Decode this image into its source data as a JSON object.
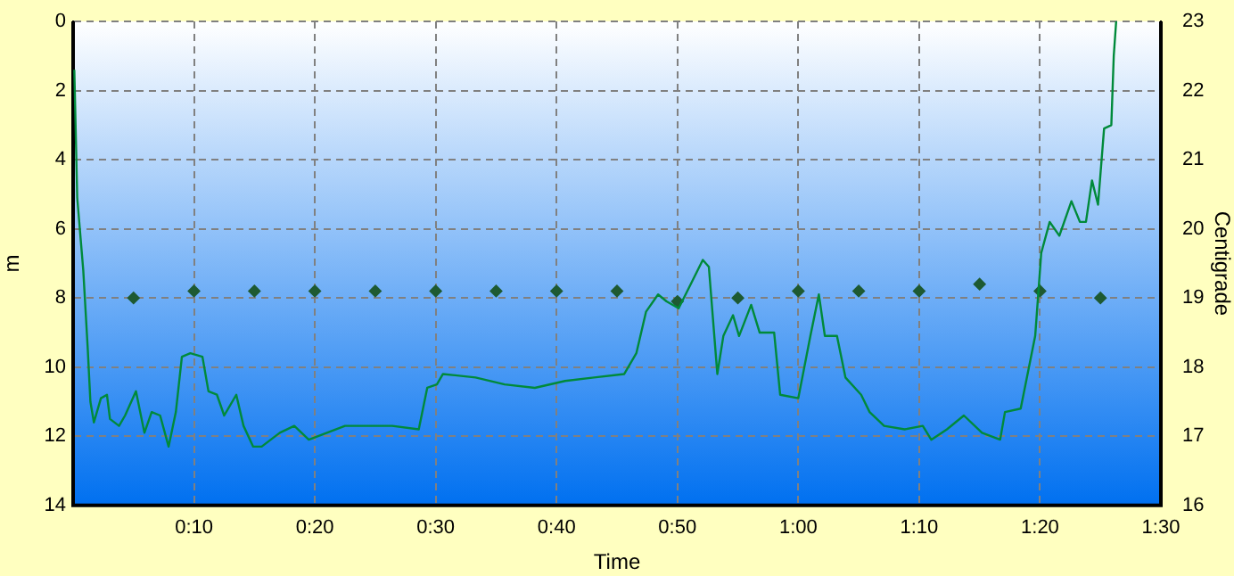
{
  "chart_data": {
    "type": "line",
    "xlabel": "Time",
    "ylabel": "m",
    "y2label": "Centigrade",
    "xlim": [
      0,
      90
    ],
    "xticks": [
      {
        "value": 0,
        "label": null
      },
      {
        "value": 10,
        "label": "0:10"
      },
      {
        "value": 20,
        "label": "0:20"
      },
      {
        "value": 30,
        "label": "0:30"
      },
      {
        "value": 40,
        "label": "0:40"
      },
      {
        "value": 50,
        "label": "0:50"
      },
      {
        "value": 60,
        "label": "1:00"
      },
      {
        "value": 70,
        "label": "1:10"
      },
      {
        "value": 80,
        "label": "1:20"
      },
      {
        "value": 90,
        "label": "1:30"
      }
    ],
    "ylim": [
      14,
      0
    ],
    "yticks": [
      0,
      2,
      4,
      6,
      8,
      10,
      12,
      14
    ],
    "y2lim": [
      16,
      23
    ],
    "y2ticks": [
      16,
      17,
      18,
      19,
      20,
      21,
      22,
      23
    ],
    "grid": true,
    "legend": false,
    "series": [
      {
        "color": "#008a3a",
        "marker": "none",
        "line_style": "solid",
        "x": [
          0.1,
          0.34,
          0.84,
          1.2,
          1.43,
          1.72,
          2.3,
          2.8,
          3.05,
          3.8,
          4.3,
          5.2,
          5.9,
          6.5,
          7.2,
          7.9,
          8.5,
          9.0,
          9.7,
          10.7,
          11.2,
          11.9,
          12.5,
          13.5,
          14.1,
          14.9,
          15.6,
          17.1,
          18.3,
          19.5,
          21,
          22.5,
          24.4,
          26.4,
          28.6,
          29.3,
          30.1,
          30.6,
          33.3,
          35.7,
          38.2,
          40.7,
          43.1,
          45.6,
          46.6,
          47.4,
          48.4,
          49.1,
          50.1,
          51.1,
          52.1,
          52.6,
          53.3,
          53.8,
          54.6,
          55.1,
          56.1,
          56.8,
          58.0,
          58.5,
          60,
          61,
          61.7,
          62.2,
          63.2,
          63.9,
          65.2,
          65.9,
          67.1,
          68.8,
          70.3,
          71.0,
          72.3,
          73.7,
          75.2,
          76.7,
          77.1,
          78.4,
          79.6,
          80.1,
          80.8,
          81.6,
          82.6,
          83.3,
          83.8,
          84.3,
          84.8,
          85.3,
          85.9,
          86.1,
          86.3
        ],
        "values": [
          1.4,
          5.1,
          7.2,
          9.4,
          11.0,
          11.6,
          10.9,
          10.8,
          11.5,
          11.7,
          11.4,
          10.7,
          11.9,
          11.3,
          11.4,
          12.3,
          11.3,
          9.7,
          9.6,
          9.7,
          10.7,
          10.8,
          11.4,
          10.8,
          11.7,
          12.3,
          12.3,
          11.9,
          11.7,
          12.1,
          11.9,
          11.7,
          11.7,
          11.7,
          11.8,
          10.6,
          10.5,
          10.2,
          10.3,
          10.5,
          10.6,
          10.4,
          10.3,
          10.2,
          9.6,
          8.4,
          7.9,
          8.1,
          8.3,
          7.6,
          6.9,
          7.1,
          10.2,
          9.1,
          8.5,
          9.1,
          8.2,
          9.0,
          9.0,
          10.8,
          10.9,
          9.1,
          7.9,
          9.1,
          9.1,
          10.3,
          10.8,
          11.3,
          11.7,
          11.8,
          11.7,
          12.1,
          11.8,
          11.4,
          11.9,
          12.1,
          11.3,
          11.2,
          9.1,
          6.7,
          5.8,
          6.2,
          5.2,
          5.8,
          5.8,
          4.6,
          5.3,
          3.1,
          3.0,
          1.0,
          0
        ]
      },
      {
        "type": "scatter",
        "axis": "y2",
        "color": "#1e5a32",
        "marker": "diamond",
        "x": [
          5,
          10,
          15,
          20,
          25,
          30,
          35,
          40,
          45,
          50,
          55,
          60,
          65,
          70,
          75,
          80,
          85
        ],
        "values": [
          19.0,
          19.1,
          19.1,
          19.1,
          19.1,
          19.1,
          19.1,
          19.1,
          19.1,
          18.95,
          19.0,
          19.1,
          19.1,
          19.1,
          19.2,
          19.1,
          19.0
        ]
      }
    ]
  }
}
